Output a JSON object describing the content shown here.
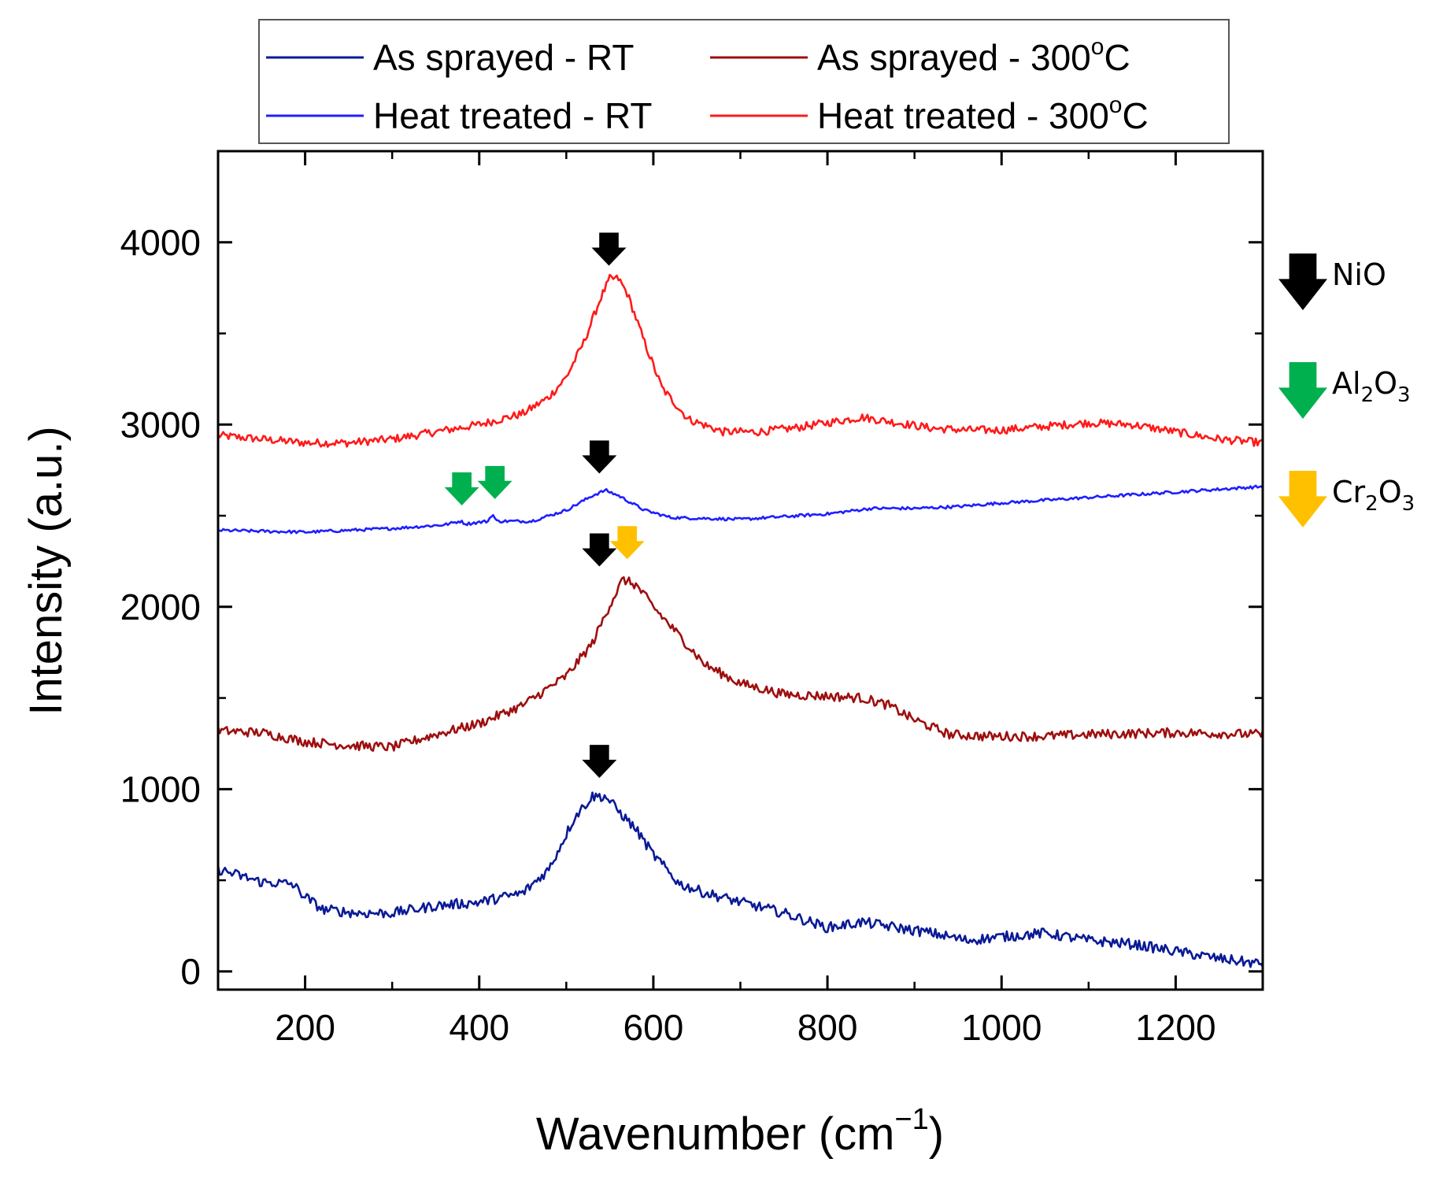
{
  "colors": {
    "as_sprayed_rt": "#0a1a96",
    "as_sprayed_300": "#9e0f0f",
    "heat_treated_rt": "#1f1fff",
    "heat_treated_300": "#ff1a1a",
    "nio_arrow": "#000000",
    "al2o3_arrow": "#00b04f",
    "cr2o3_arrow": "#ffc000"
  },
  "chart_data": {
    "type": "line",
    "title": "",
    "xlabel": "Wavenumber (cm",
    "xlabel_sup": "−1",
    "xlabel_close": ")",
    "ylabel": "Intensity (a.u.)",
    "xlim": [
      100,
      1300
    ],
    "ylim": [
      -100,
      4500
    ],
    "xticks": [
      200,
      400,
      600,
      800,
      1000,
      1200
    ],
    "yticks": [
      0,
      1000,
      2000,
      3000,
      4000
    ],
    "grid": false,
    "legend_position": "top",
    "legend": [
      {
        "label": "As sprayed - RT",
        "series": "as_sprayed_rt"
      },
      {
        "label": "As sprayed - 300",
        "sup": "o",
        "suffix": "C",
        "series": "as_sprayed_300"
      },
      {
        "label": "Heat treated - RT",
        "series": "heat_treated_rt"
      },
      {
        "label": "Heat treated - 300",
        "sup": "o",
        "suffix": "C",
        "series": "heat_treated_300"
      }
    ],
    "series": [
      {
        "name": "Heat treated - 300oC",
        "key": "heat_treated_300",
        "noise": 22,
        "points": [
          [
            100,
            2940
          ],
          [
            150,
            2920
          ],
          [
            200,
            2900
          ],
          [
            250,
            2900
          ],
          [
            300,
            2920
          ],
          [
            350,
            2960
          ],
          [
            400,
            3000
          ],
          [
            450,
            3060
          ],
          [
            480,
            3150
          ],
          [
            500,
            3260
          ],
          [
            520,
            3450
          ],
          [
            540,
            3700
          ],
          [
            550,
            3800
          ],
          [
            560,
            3800
          ],
          [
            570,
            3720
          ],
          [
            590,
            3450
          ],
          [
            610,
            3200
          ],
          [
            640,
            3030
          ],
          [
            680,
            2960
          ],
          [
            720,
            2960
          ],
          [
            760,
            2980
          ],
          [
            800,
            3010
          ],
          [
            840,
            3040
          ],
          [
            880,
            3010
          ],
          [
            920,
            2980
          ],
          [
            960,
            2970
          ],
          [
            1000,
            2970
          ],
          [
            1050,
            2990
          ],
          [
            1100,
            3010
          ],
          [
            1150,
            3000
          ],
          [
            1200,
            2960
          ],
          [
            1250,
            2920
          ],
          [
            1300,
            2900
          ]
        ]
      },
      {
        "name": "Heat treated - RT",
        "key": "heat_treated_rt",
        "noise": 8,
        "points": [
          [
            100,
            2420
          ],
          [
            200,
            2410
          ],
          [
            300,
            2430
          ],
          [
            360,
            2450
          ],
          [
            378,
            2470
          ],
          [
            385,
            2455
          ],
          [
            410,
            2470
          ],
          [
            415,
            2510
          ],
          [
            420,
            2470
          ],
          [
            460,
            2470
          ],
          [
            500,
            2530
          ],
          [
            530,
            2610
          ],
          [
            545,
            2640
          ],
          [
            560,
            2610
          ],
          [
            590,
            2530
          ],
          [
            620,
            2490
          ],
          [
            700,
            2480
          ],
          [
            800,
            2510
          ],
          [
            850,
            2540
          ],
          [
            900,
            2540
          ],
          [
            950,
            2550
          ],
          [
            1000,
            2570
          ],
          [
            1100,
            2600
          ],
          [
            1200,
            2630
          ],
          [
            1300,
            2660
          ]
        ]
      },
      {
        "name": "As sprayed - 300oC",
        "key": "as_sprayed_300",
        "noise": 26,
        "points": [
          [
            100,
            1320
          ],
          [
            150,
            1310
          ],
          [
            200,
            1260
          ],
          [
            250,
            1240
          ],
          [
            300,
            1230
          ],
          [
            350,
            1300
          ],
          [
            400,
            1360
          ],
          [
            450,
            1460
          ],
          [
            500,
            1620
          ],
          [
            530,
            1800
          ],
          [
            550,
            2010
          ],
          [
            565,
            2150
          ],
          [
            580,
            2120
          ],
          [
            600,
            2000
          ],
          [
            630,
            1840
          ],
          [
            660,
            1680
          ],
          [
            700,
            1580
          ],
          [
            750,
            1520
          ],
          [
            800,
            1510
          ],
          [
            840,
            1500
          ],
          [
            870,
            1460
          ],
          [
            900,
            1380
          ],
          [
            940,
            1300
          ],
          [
            980,
            1290
          ],
          [
            1050,
            1290
          ],
          [
            1100,
            1300
          ],
          [
            1200,
            1310
          ],
          [
            1300,
            1300
          ]
        ]
      },
      {
        "name": "As sprayed - RT",
        "key": "as_sprayed_rt",
        "noise": 28,
        "points": [
          [
            100,
            560
          ],
          [
            150,
            490
          ],
          [
            185,
            480
          ],
          [
            200,
            410
          ],
          [
            220,
            340
          ],
          [
            260,
            320
          ],
          [
            300,
            320
          ],
          [
            350,
            360
          ],
          [
            400,
            380
          ],
          [
            450,
            430
          ],
          [
            480,
            560
          ],
          [
            510,
            850
          ],
          [
            530,
            960
          ],
          [
            545,
            960
          ],
          [
            560,
            880
          ],
          [
            580,
            780
          ],
          [
            600,
            640
          ],
          [
            630,
            480
          ],
          [
            660,
            430
          ],
          [
            700,
            380
          ],
          [
            750,
            320
          ],
          [
            800,
            240
          ],
          [
            840,
            270
          ],
          [
            880,
            240
          ],
          [
            920,
            210
          ],
          [
            960,
            170
          ],
          [
            1000,
            190
          ],
          [
            1050,
            210
          ],
          [
            1100,
            170
          ],
          [
            1150,
            150
          ],
          [
            1200,
            110
          ],
          [
            1250,
            70
          ],
          [
            1300,
            40
          ]
        ]
      }
    ],
    "peak_markers": [
      {
        "x": 549,
        "y": 3880,
        "compound": "NiO",
        "color": "nio_arrow"
      },
      {
        "x": 538,
        "y": 2740,
        "compound": "NiO",
        "color": "nio_arrow"
      },
      {
        "x": 380,
        "y": 2565,
        "compound": "Al2O3",
        "color": "al2o3_arrow"
      },
      {
        "x": 418,
        "y": 2600,
        "compound": "Al2O3",
        "color": "al2o3_arrow"
      },
      {
        "x": 538,
        "y": 2230,
        "compound": "NiO",
        "color": "nio_arrow"
      },
      {
        "x": 570,
        "y": 2270,
        "compound": "Cr2O3",
        "color": "cr2o3_arrow"
      },
      {
        "x": 538,
        "y": 1070,
        "compound": "NiO",
        "color": "nio_arrow"
      }
    ],
    "marker_legend": [
      {
        "label": "NiO",
        "color": "nio_arrow"
      },
      {
        "label": "Al",
        "sub1": "2",
        "mid": "O",
        "sub2": "3",
        "color": "al2o3_arrow"
      },
      {
        "label": "Cr",
        "sub1": "2",
        "mid": "O",
        "sub2": "3",
        "color": "cr2o3_arrow"
      }
    ]
  }
}
